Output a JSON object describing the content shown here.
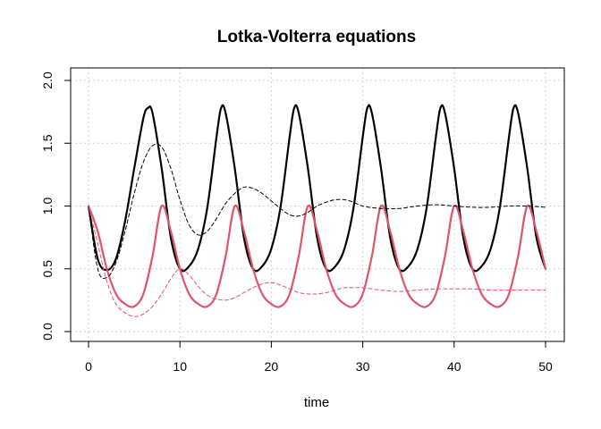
{
  "chart_data": {
    "type": "line",
    "title": "Lotka-Volterra equations",
    "xlabel": "time",
    "ylabel": "",
    "xlim": [
      0,
      50
    ],
    "ylim": [
      0,
      2
    ],
    "x_ticks": [
      0,
      10,
      20,
      30,
      40,
      50
    ],
    "x_tick_labels": [
      "0",
      "10",
      "20",
      "30",
      "40",
      "50"
    ],
    "y_ticks": [
      0,
      0.5,
      1,
      1.5,
      2
    ],
    "y_tick_labels": [
      "0.0",
      "0.5",
      "1.0",
      "1.5",
      "2.0"
    ],
    "grid": true,
    "series": [
      {
        "color": "#000000",
        "style": "solid",
        "x": [
          0,
          1,
          2,
          3,
          4,
          5,
          6,
          6.5,
          7,
          8,
          9,
          10,
          11,
          12,
          13,
          14,
          14.5,
          15,
          16,
          17,
          18,
          19,
          20,
          21,
          22,
          22.5,
          23,
          24,
          25,
          26,
          27,
          28,
          29,
          30,
          30.5,
          31,
          32,
          33,
          34,
          35,
          36,
          37,
          38,
          38.5,
          39,
          40,
          41,
          42,
          43,
          44,
          45,
          46,
          46.5,
          47,
          48,
          49,
          50
        ],
        "y": [
          1.0,
          0.58,
          0.49,
          0.58,
          0.88,
          1.3,
          1.7,
          1.78,
          1.74,
          1.3,
          0.75,
          0.5,
          0.52,
          0.66,
          0.99,
          1.55,
          1.78,
          1.74,
          1.3,
          0.75,
          0.5,
          0.52,
          0.66,
          0.99,
          1.55,
          1.78,
          1.74,
          1.3,
          0.75,
          0.5,
          0.52,
          0.66,
          0.99,
          1.55,
          1.78,
          1.74,
          1.3,
          0.75,
          0.5,
          0.52,
          0.66,
          0.99,
          1.55,
          1.78,
          1.74,
          1.3,
          0.75,
          0.5,
          0.52,
          0.66,
          0.99,
          1.55,
          1.78,
          1.74,
          1.3,
          0.75,
          0.5
        ]
      },
      {
        "color": "#DF536B",
        "style": "solid",
        "x": [
          0,
          1,
          2,
          3,
          4,
          5,
          6,
          7,
          8,
          9,
          10,
          11,
          12,
          13,
          14,
          15,
          16,
          17,
          18,
          19,
          20,
          21,
          22,
          23,
          24,
          25,
          26,
          27,
          28,
          29,
          30,
          31,
          32,
          33,
          34,
          35,
          36,
          37,
          38,
          39,
          40,
          41,
          42,
          43,
          44,
          45,
          46,
          47,
          48,
          49,
          50
        ],
        "y": [
          1.0,
          0.8,
          0.5,
          0.3,
          0.22,
          0.2,
          0.3,
          0.6,
          1.0,
          0.8,
          0.5,
          0.3,
          0.22,
          0.2,
          0.3,
          0.6,
          1.0,
          0.8,
          0.5,
          0.3,
          0.22,
          0.2,
          0.3,
          0.6,
          1.0,
          0.8,
          0.5,
          0.3,
          0.22,
          0.2,
          0.3,
          0.6,
          1.0,
          0.8,
          0.5,
          0.3,
          0.22,
          0.2,
          0.3,
          0.6,
          1.0,
          0.8,
          0.5,
          0.3,
          0.22,
          0.2,
          0.3,
          0.6,
          1.0,
          0.8,
          0.5
        ]
      },
      {
        "color": "#000000",
        "style": "dashed",
        "x": [
          0,
          1,
          2,
          3,
          4,
          5,
          6,
          7,
          8,
          9,
          10,
          11,
          12,
          13,
          14,
          15,
          16,
          17,
          18,
          19,
          20,
          21,
          22,
          23,
          24,
          25,
          26,
          27,
          28,
          29,
          30,
          32,
          34,
          36,
          38,
          40,
          42,
          44,
          46,
          48,
          50
        ],
        "y": [
          1.0,
          0.5,
          0.43,
          0.55,
          0.8,
          1.1,
          1.35,
          1.48,
          1.47,
          1.3,
          1.05,
          0.85,
          0.77,
          0.8,
          0.9,
          1.02,
          1.1,
          1.15,
          1.14,
          1.1,
          1.04,
          0.98,
          0.93,
          0.92,
          0.95,
          1.0,
          1.03,
          1.05,
          1.05,
          1.03,
          1.0,
          0.98,
          0.98,
          1.0,
          1.01,
          1.0,
          0.99,
          0.99,
          1.0,
          1.0,
          0.99
        ]
      },
      {
        "color": "#DF536B",
        "style": "dashed",
        "x": [
          0,
          1,
          2,
          3,
          4,
          5,
          6,
          7,
          8,
          9,
          10,
          11,
          12,
          13,
          14,
          15,
          16,
          17,
          18,
          19,
          20,
          21,
          22,
          23,
          24,
          25,
          26,
          27,
          28,
          29,
          30,
          32,
          34,
          36,
          38,
          40,
          42,
          44,
          46,
          48,
          50
        ],
        "y": [
          1.0,
          0.7,
          0.4,
          0.22,
          0.15,
          0.12,
          0.14,
          0.2,
          0.3,
          0.42,
          0.5,
          0.45,
          0.36,
          0.29,
          0.26,
          0.25,
          0.27,
          0.31,
          0.35,
          0.38,
          0.39,
          0.37,
          0.34,
          0.31,
          0.3,
          0.3,
          0.31,
          0.33,
          0.35,
          0.35,
          0.35,
          0.33,
          0.32,
          0.33,
          0.34,
          0.34,
          0.34,
          0.33,
          0.33,
          0.33,
          0.33
        ]
      }
    ]
  }
}
